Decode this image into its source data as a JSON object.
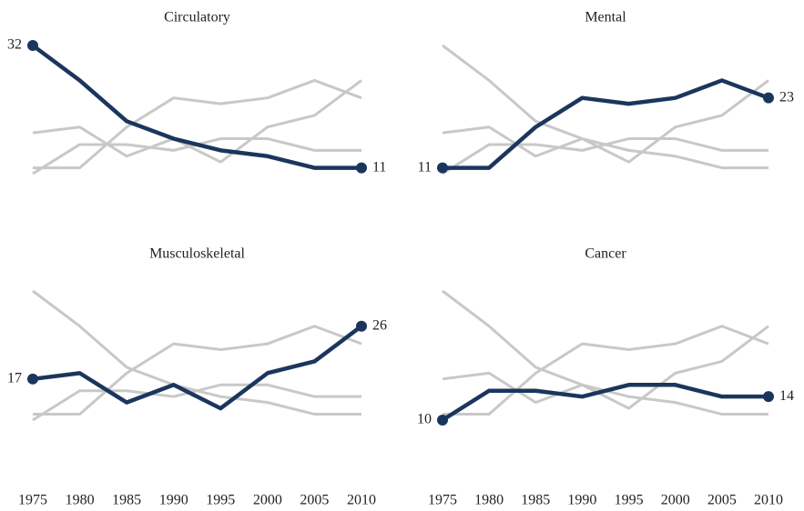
{
  "chart_data": {
    "type": "line",
    "x": [
      1975,
      1980,
      1985,
      1990,
      1995,
      2000,
      2005,
      2010
    ],
    "ylim": [
      10,
      32
    ],
    "context_color": "#c8c8c8",
    "series": [
      {
        "name": "Circulatory",
        "color": "#1b365d",
        "values": [
          32,
          26,
          19,
          16,
          14,
          13,
          11,
          11
        ]
      },
      {
        "name": "Mental",
        "color": "#1b365d",
        "values": [
          11,
          11,
          18,
          23,
          22,
          23,
          26,
          23
        ]
      },
      {
        "name": "Musculoskeletal",
        "color": "#1b365d",
        "values": [
          17,
          18,
          13,
          16,
          12,
          18,
          20,
          26
        ]
      },
      {
        "name": "Cancer",
        "color": "#1b365d",
        "values": [
          10,
          15,
          15,
          14,
          16,
          16,
          14,
          14
        ]
      }
    ]
  }
}
